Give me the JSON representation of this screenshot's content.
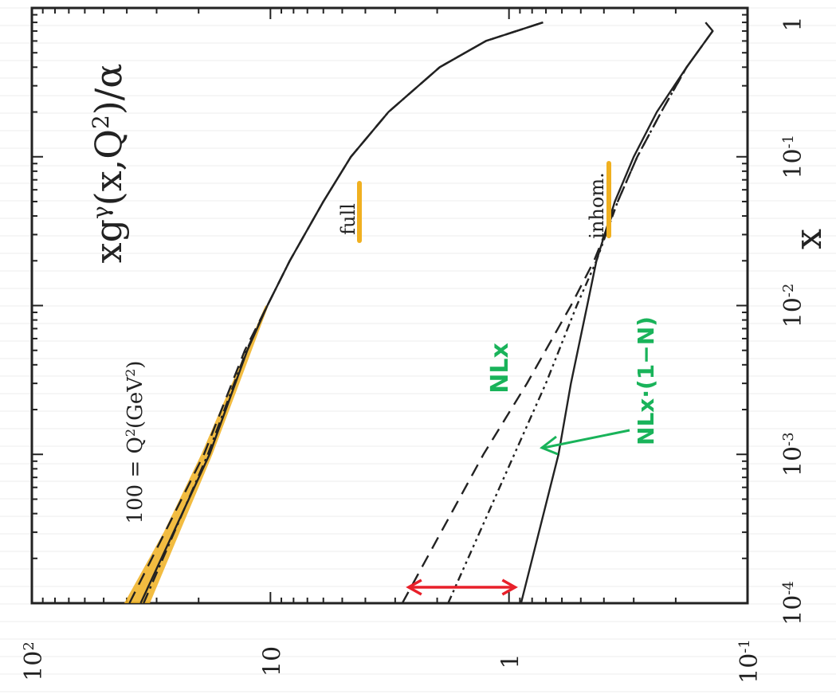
{
  "chart_data": {
    "type": "line",
    "orientation": "rotated-90-ccw",
    "title": "xgγ(x,Q²)/α",
    "title_parts": {
      "base": "xg",
      "sup1": "γ",
      "mid": "(x,Q",
      "sup2": "2",
      "end": ")/α"
    },
    "xlabel": "x",
    "xscale": "log",
    "yscale": "log",
    "xlim": [
      0.0001,
      1
    ],
    "ylim": [
      0.1,
      100
    ],
    "x_ticks": [
      {
        "base": "10",
        "exp": "-4"
      },
      {
        "base": "10",
        "exp": "-3"
      },
      {
        "base": "10",
        "exp": "-2"
      },
      {
        "base": "10",
        "exp": "-1"
      },
      {
        "base": "1",
        "exp": ""
      }
    ],
    "y_ticks": [
      {
        "base": "10",
        "exp": "-1"
      },
      {
        "base": "1",
        "exp": ""
      },
      {
        "base": "10",
        "exp": ""
      },
      {
        "base": "10",
        "exp": "2"
      }
    ],
    "annotations": {
      "q2": {
        "prefix": "100 = Q",
        "sup": "2",
        "suffix": "(GeV",
        "sup2": "2",
        "suffix2": ")"
      },
      "full": "full",
      "inhom": "inhom.",
      "nlx": "NLx",
      "nlx_n": "NLx·(1−N)"
    },
    "series": [
      {
        "style": "solid",
        "x": [
          0.0001,
          0.001,
          0.005,
          0.01,
          0.02,
          0.05,
          0.1,
          0.2,
          0.4,
          0.6,
          0.8
        ],
        "y": [
          35,
          18,
          12.5,
          10.3,
          8.3,
          6.0,
          4.6,
          3.2,
          1.95,
          1.25,
          0.72
        ]
      },
      {
        "style": "dashed",
        "x": [
          0.0001,
          0.001,
          0.005,
          0.01,
          0.02,
          0.05,
          0.1,
          0.2,
          0.4,
          0.6,
          0.8
        ],
        "y": [
          39,
          19,
          12.8,
          10.3,
          8.3,
          6.0,
          4.6,
          3.2,
          1.95,
          1.25,
          0.72
        ]
      },
      {
        "style": "dashdot",
        "x": [
          0.0001,
          0.001,
          0.005,
          0.01,
          0.02,
          0.05,
          0.1,
          0.2,
          0.4,
          0.6,
          0.8
        ],
        "y": [
          34,
          18.3,
          12.6,
          10.3,
          8.3,
          6.0,
          4.6,
          3.2,
          1.95,
          1.25,
          0.72
        ]
      },
      {
        "style": "solid",
        "x": [
          0.0001,
          0.001,
          0.003,
          0.01,
          0.02,
          0.05,
          0.1,
          0.2,
          0.4,
          0.7,
          0.8
        ],
        "y": [
          0.89,
          0.62,
          0.55,
          0.47,
          0.43,
          0.36,
          0.3,
          0.24,
          0.18,
          0.14,
          0.15
        ]
      },
      {
        "style": "dashed",
        "x": [
          0.0001,
          0.001,
          0.003,
          0.01,
          0.02,
          0.05,
          0.1,
          0.2,
          0.4,
          0.7
        ],
        "y": [
          2.8,
          1.28,
          0.84,
          0.55,
          0.44,
          0.35,
          0.29,
          0.23,
          0.18,
          0.14
        ]
      },
      {
        "style": "dashdotdot",
        "x": [
          0.0001,
          0.001,
          0.003,
          0.01,
          0.02,
          0.05,
          0.1,
          0.2,
          0.4,
          0.7
        ],
        "y": [
          1.8,
          0.95,
          0.7,
          0.52,
          0.43,
          0.35,
          0.29,
          0.23,
          0.18,
          0.14
        ]
      }
    ],
    "band": {
      "color": "#f0b020",
      "x": [
        0.0001,
        0.0003,
        0.001,
        0.003,
        0.01
      ],
      "y_low": [
        32,
        24,
        17.5,
        13.5,
        10.2
      ],
      "y_high": [
        41,
        28,
        19.5,
        14.5,
        10.5
      ]
    },
    "markers": {
      "color": "#f0b020"
    },
    "arrow": {
      "color": "#e8202a",
      "x": 0.0001,
      "y_from": 0.9,
      "y_to": 2.8
    },
    "pen_color": "#19b35a"
  }
}
